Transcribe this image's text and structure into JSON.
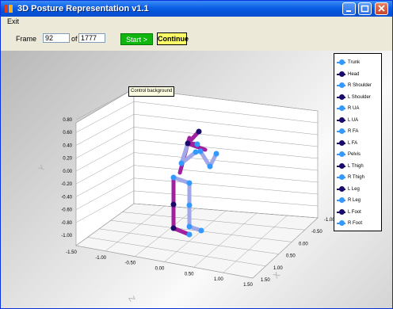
{
  "window": {
    "title": "3D Posture Representation v1.1",
    "title_color": "#0a5fe4"
  },
  "menu": {
    "exit": "Exit"
  },
  "controls": {
    "frame_label": "Frame",
    "frame_value": "92",
    "of_label": "of",
    "total_value": "1777",
    "start_label": "Start >",
    "continue_label": "Continue"
  },
  "tooltip": "Control background",
  "legend": [
    {
      "label": "Trunk",
      "color": "#3399ff"
    },
    {
      "label": "Head",
      "color": "#1a0a6b"
    },
    {
      "label": "R Shoulder",
      "color": "#3399ff"
    },
    {
      "label": "L Shoulder",
      "color": "#1a0a6b"
    },
    {
      "label": "R UA",
      "color": "#3399ff"
    },
    {
      "label": "L UA",
      "color": "#1a0a6b"
    },
    {
      "label": "R FA",
      "color": "#3399ff"
    },
    {
      "label": "L FA",
      "color": "#1a0a6b"
    },
    {
      "label": "Pelvis",
      "color": "#3399ff"
    },
    {
      "label": "L Thigh",
      "color": "#1a0a6b"
    },
    {
      "label": "R Thigh",
      "color": "#3399ff"
    },
    {
      "label": "L Leg",
      "color": "#1a0a6b"
    },
    {
      "label": "R Leg",
      "color": "#3399ff"
    },
    {
      "label": "L Foot",
      "color": "#1a0a6b"
    },
    {
      "label": "R Foot",
      "color": "#3399ff"
    }
  ],
  "axes": {
    "y_ticks": [
      "0.80",
      "0.60",
      "0.40",
      "0.20",
      "0.00",
      "-0.20",
      "-0.40",
      "-0.60",
      "-0.80",
      "-1.00"
    ],
    "x_ticks": [
      "-1.50",
      "-1.00",
      "-0.50",
      "0.00",
      "0.50",
      "1.00",
      "1.50"
    ],
    "z_ticks": [
      "1.50",
      "1.00",
      "0.50",
      "0.00",
      "-0.50",
      "-1.00"
    ],
    "y_axis_title": "Y",
    "x_axis_title": "Z",
    "z_axis_title": "X"
  },
  "colors": {
    "bone_left": "#a020a0",
    "bone_right": "#a0a8e8",
    "joint_left": "#1a0a6b",
    "joint_right": "#3399ff"
  }
}
